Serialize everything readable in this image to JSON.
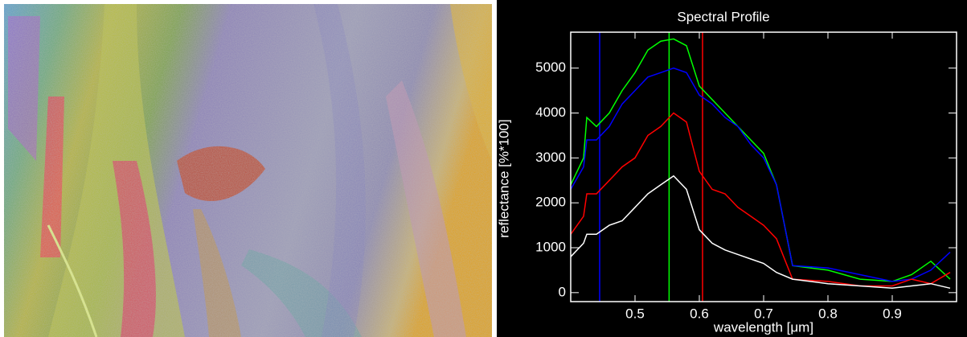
{
  "chart_data": {
    "type": "line",
    "title": "Spectral Profile",
    "x_label": "wavelength [μm]",
    "y_label": "reflectance [%*100]",
    "x": [
      0.4,
      0.42,
      0.425,
      0.44,
      0.46,
      0.48,
      0.5,
      0.52,
      0.54,
      0.56,
      0.58,
      0.6,
      0.62,
      0.64,
      0.66,
      0.68,
      0.7,
      0.72,
      0.745,
      0.8,
      0.85,
      0.9,
      0.93,
      0.96,
      0.99
    ],
    "series": [
      {
        "color": "#00ff00",
        "values": [
          2400,
          3000,
          3900,
          3700,
          4000,
          4500,
          4900,
          5400,
          5600,
          5650,
          5500,
          4600,
          4300,
          4000,
          3700,
          3400,
          3100,
          2400,
          600,
          500,
          300,
          250,
          400,
          700,
          300
        ]
      },
      {
        "color": "#0000ff",
        "values": [
          2300,
          2800,
          3400,
          3400,
          3700,
          4200,
          4500,
          4800,
          4900,
          5000,
          4900,
          4400,
          4200,
          3900,
          3700,
          3300,
          3000,
          2400,
          600,
          550,
          400,
          250,
          300,
          500,
          900
        ]
      },
      {
        "color": "#ff0000",
        "values": [
          1300,
          1700,
          2200,
          2200,
          2500,
          2800,
          3000,
          3500,
          3700,
          4000,
          3800,
          2700,
          2300,
          2200,
          1900,
          1700,
          1500,
          1200,
          300,
          250,
          150,
          150,
          300,
          200,
          450
        ]
      },
      {
        "color": "#ffffff",
        "values": [
          800,
          1100,
          1300,
          1300,
          1500,
          1600,
          1900,
          2200,
          2400,
          2600,
          2300,
          1400,
          1100,
          950,
          850,
          750,
          650,
          450,
          300,
          200,
          150,
          100,
          150,
          200,
          100
        ]
      }
    ],
    "band_markers": [
      {
        "x": 0.445,
        "color": "#0000ff"
      },
      {
        "x": 0.553,
        "color": "#00ff00"
      },
      {
        "x": 0.605,
        "color": "#ff0000"
      }
    ],
    "xlim": [
      0.4,
      1.0
    ],
    "ylim": [
      -200,
      5800
    ],
    "xticks": [
      0.5,
      0.6,
      0.7,
      0.8,
      0.9
    ],
    "yticks": [
      0,
      1000,
      2000,
      3000,
      4000,
      5000
    ]
  }
}
